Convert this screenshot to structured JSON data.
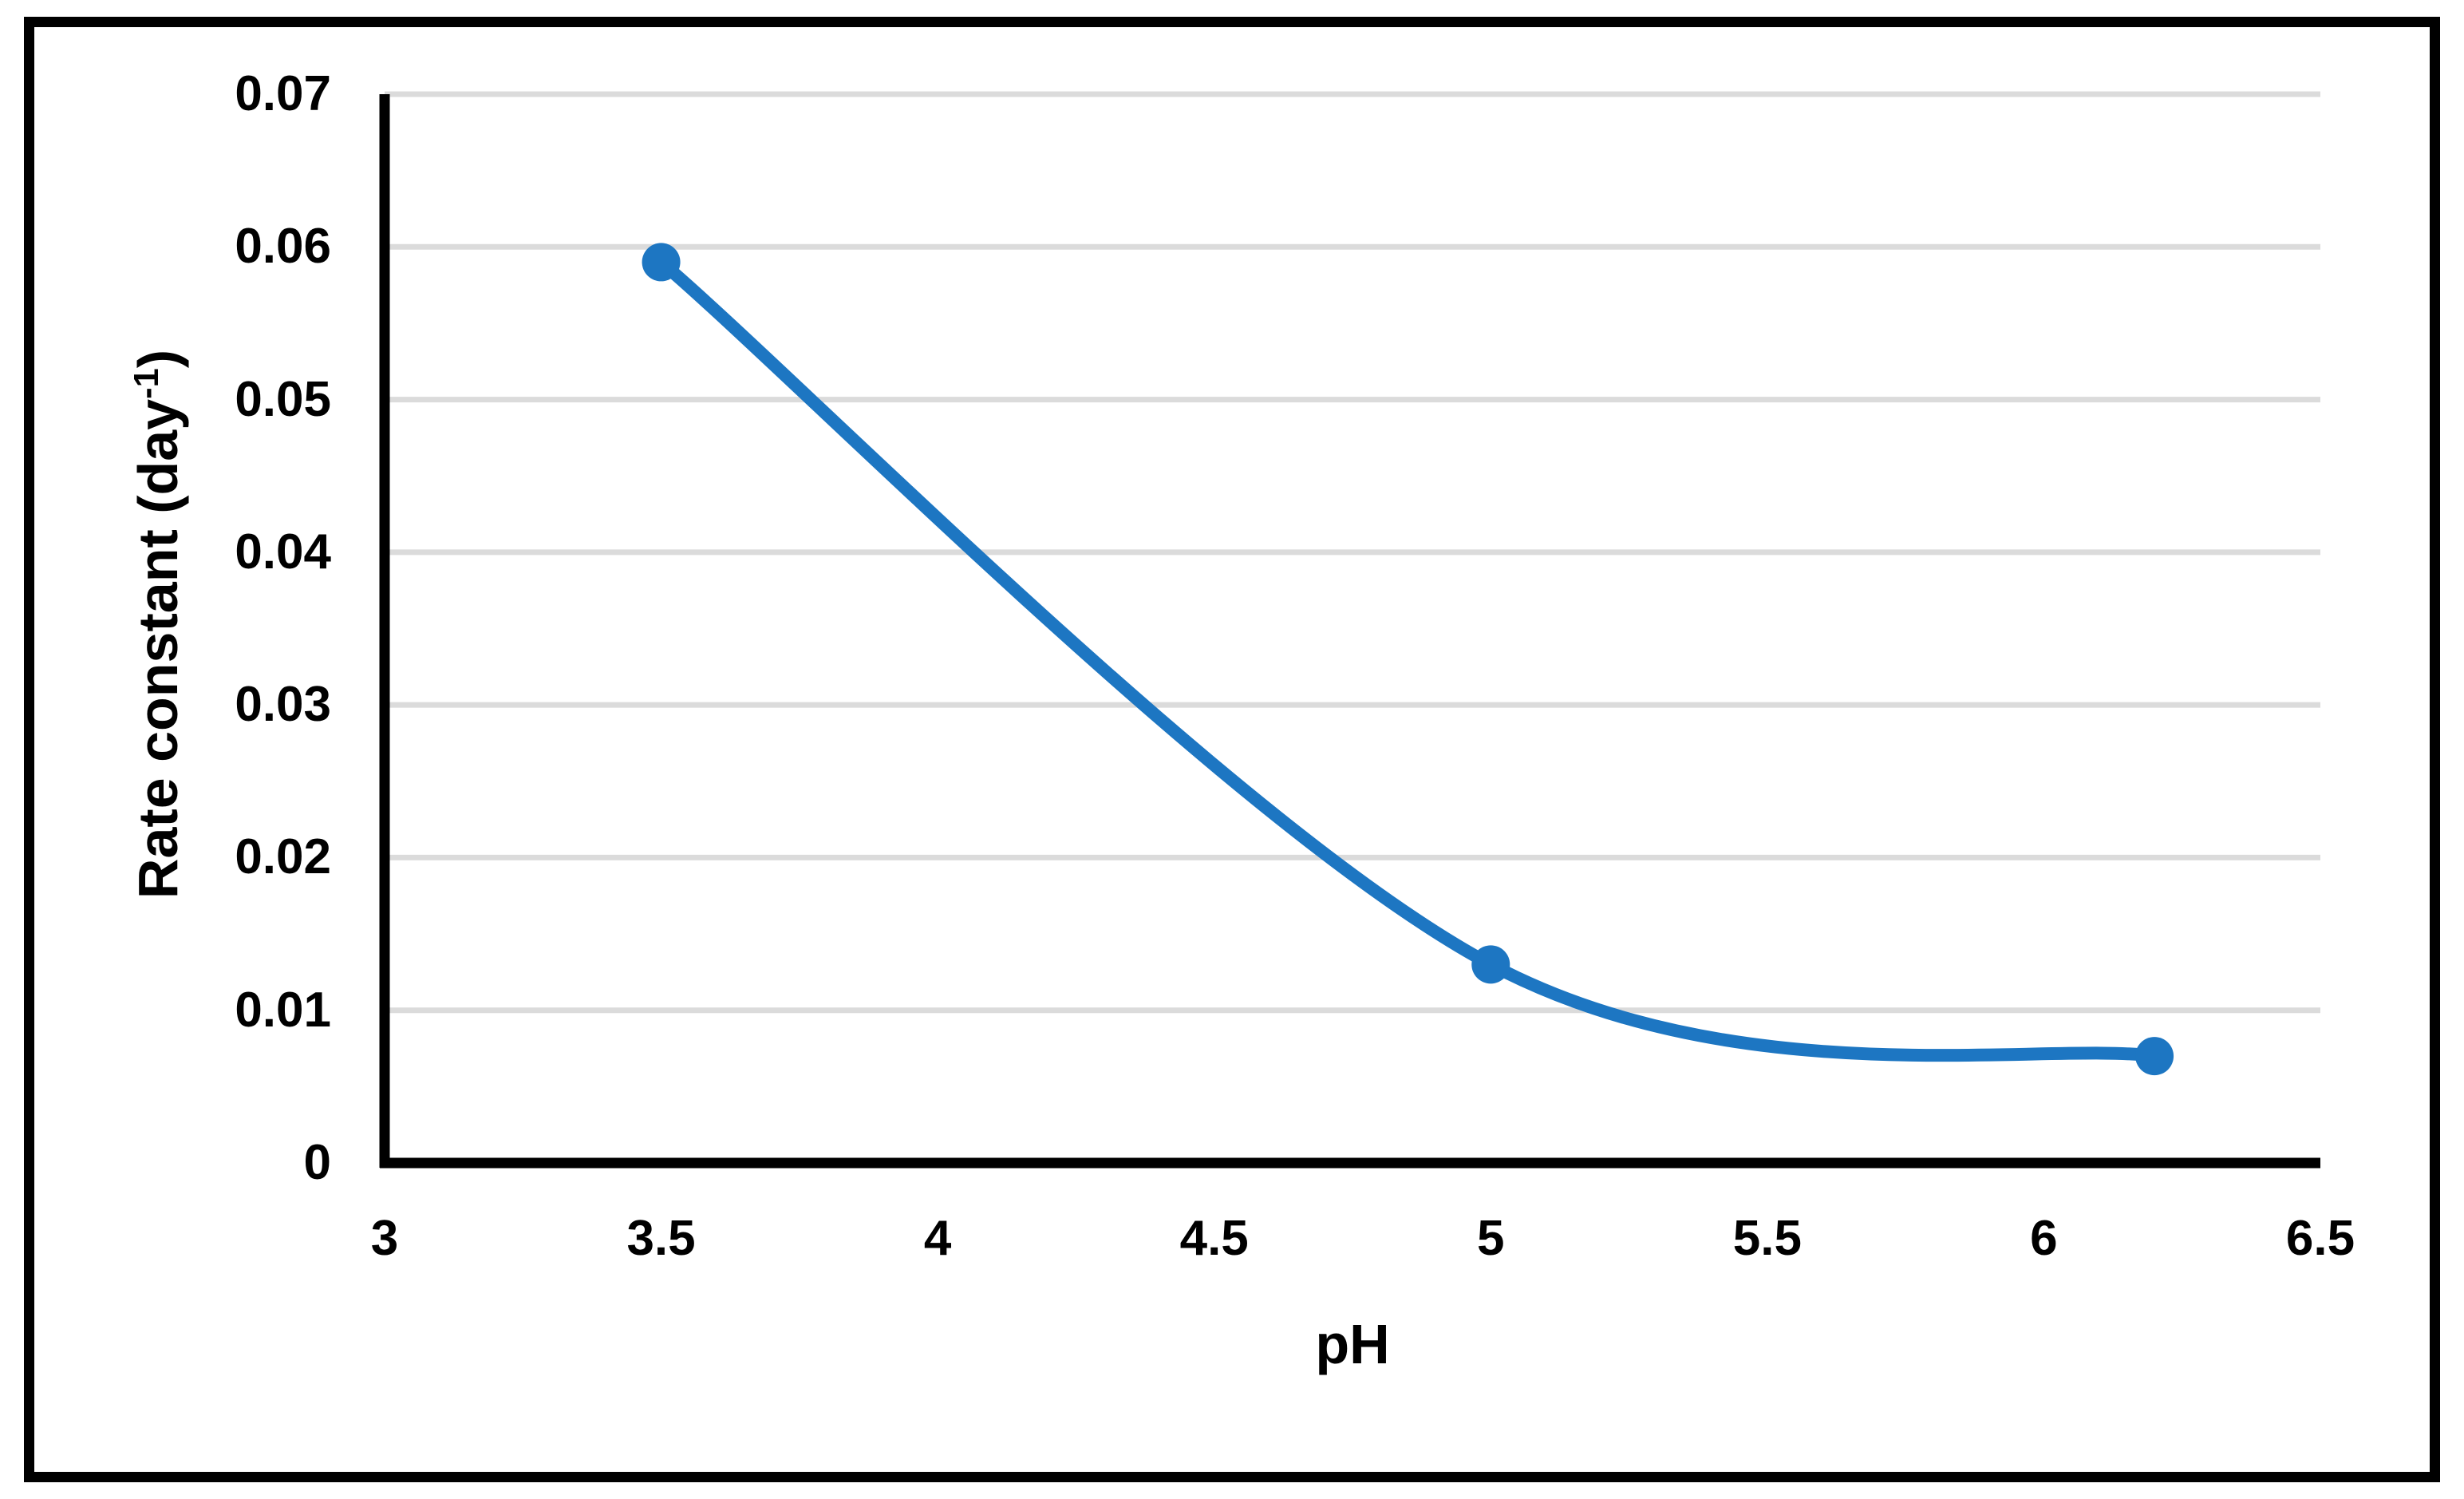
{
  "chart_data": {
    "type": "line",
    "smooth": true,
    "title": "",
    "xlabel": "pH",
    "ylabel": "Rate constant (day-1)",
    "ylabel_parts": {
      "prefix": "Rate constant (day",
      "superscript": "-1",
      "suffix": ")"
    },
    "x": [
      3.5,
      5,
      6.2
    ],
    "values": [
      0.059,
      0.013,
      0.007
    ],
    "xlim": [
      3,
      6.5
    ],
    "ylim": [
      0,
      0.07
    ],
    "x_ticks": [
      "3",
      "3.5",
      "4",
      "4.5",
      "5",
      "5.5",
      "6",
      "6.5"
    ],
    "y_ticks": [
      "0",
      "0.01",
      "0.02",
      "0.03",
      "0.04",
      "0.05",
      "0.06",
      "0.07"
    ],
    "grid": "horizontal",
    "legend": "none",
    "marker": "circle",
    "colors": {
      "line": "#1D76C2",
      "marker": "#1D76C2",
      "gridline": "#DBDBDB",
      "axis": "#000000",
      "text": "#000000",
      "frame_border": "#000000",
      "background": "#FFFFFF"
    }
  }
}
